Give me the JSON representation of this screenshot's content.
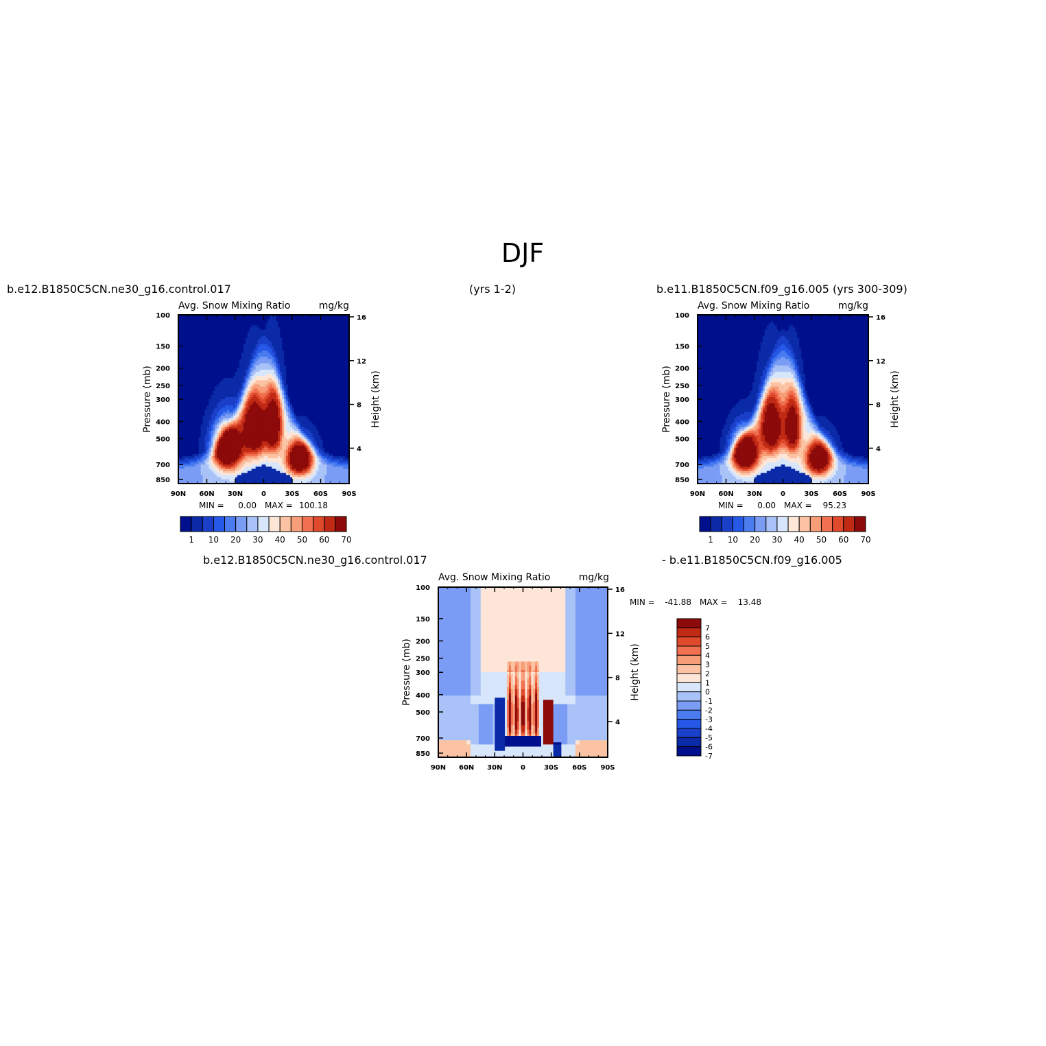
{
  "page": {
    "title": "DJF"
  },
  "panels": {
    "left": {
      "case": "b.e12.B1850C5CN.ne30_g16.control.017",
      "years": "(yrs 1-2)"
    },
    "right": {
      "case": "b.e11.B1850C5CN.f09_g16.005",
      "years": "(yrs 300-309)"
    },
    "diff": {
      "case_a": "b.e12.B1850C5CN.ne30_g16.control.017",
      "case_b": "- b.e11.B1850C5CN.f09_g16.005"
    }
  },
  "colors": {
    "blue_to_red": [
      "#00108c",
      "#0a2aa8",
      "#1a3fc8",
      "#2558e6",
      "#4a7cf0",
      "#7a9cf4",
      "#a9c2f7",
      "#d7e6fb",
      "#fde6d8",
      "#fbc3a4",
      "#f79d78",
      "#f17050",
      "#e04a2c",
      "#c02a14",
      "#8c0a0a"
    ]
  },
  "chart_data": [
    {
      "type": "heatmap",
      "id": "left",
      "title": "Avg. Snow Mixing Ratio",
      "units": "mg/kg",
      "ylabel": "Pressure (mb)",
      "y2label": "Height (km)",
      "x_ticks": [
        "90N",
        "60N",
        "30N",
        "0",
        "30S",
        "60S",
        "90S"
      ],
      "y_ticks": [
        100,
        150,
        200,
        250,
        300,
        400,
        500,
        700,
        850
      ],
      "y2_ticks": [
        4,
        8,
        12,
        16
      ],
      "min_label": "MIN =",
      "min": "0.00",
      "max_label": "MAX =",
      "max": "100.18",
      "colorbar_labels": [
        "1",
        "10",
        "20",
        "30",
        "40",
        "50",
        "60",
        "70"
      ],
      "blobs": [
        {
          "lat": -38,
          "p": 650,
          "amp": 80,
          "wlat": 9,
          "wp": 95
        },
        {
          "lat": -10,
          "p": 420,
          "amp": 70,
          "wlat": 6,
          "wp": 110
        },
        {
          "lat": 10,
          "p": 440,
          "amp": 80,
          "wlat": 8,
          "wp": 110
        },
        {
          "lat": 38,
          "p": 560,
          "amp": 95,
          "wlat": 10,
          "wp": 110
        }
      ]
    },
    {
      "type": "heatmap",
      "id": "right",
      "title": "Avg. Snow Mixing Ratio",
      "units": "mg/kg",
      "ylabel": "Pressure (mb)",
      "y2label": "Height (km)",
      "x_ticks": [
        "90N",
        "60N",
        "30N",
        "0",
        "30S",
        "60S",
        "90S"
      ],
      "y_ticks": [
        100,
        150,
        200,
        250,
        300,
        400,
        500,
        700,
        850
      ],
      "y2_ticks": [
        4,
        8,
        12,
        16
      ],
      "min_label": "MIN =",
      "min": "0.00",
      "max_label": "MAX =",
      "max": "95.23",
      "colorbar_labels": [
        "1",
        "10",
        "20",
        "30",
        "40",
        "50",
        "60",
        "70"
      ],
      "blobs": [
        {
          "lat": -38,
          "p": 650,
          "amp": 75,
          "wlat": 9,
          "wp": 95
        },
        {
          "lat": -10,
          "p": 430,
          "amp": 60,
          "wlat": 6,
          "wp": 110
        },
        {
          "lat": 12,
          "p": 430,
          "amp": 70,
          "wlat": 8,
          "wp": 110
        },
        {
          "lat": 40,
          "p": 600,
          "amp": 92,
          "wlat": 9,
          "wp": 100
        }
      ]
    },
    {
      "type": "heatmap",
      "id": "diff",
      "title": "Avg. Snow Mixing Ratio",
      "units": "mg/kg",
      "ylabel": "Pressure (mb)",
      "y2label": "Height (km)",
      "x_ticks": [
        "90N",
        "60N",
        "30N",
        "0",
        "30S",
        "60S",
        "90S"
      ],
      "y_ticks": [
        100,
        150,
        200,
        250,
        300,
        400,
        500,
        700,
        850
      ],
      "y2_ticks": [
        4,
        8,
        12,
        16
      ],
      "min_label": "MIN =",
      "min": "-41.88",
      "max_label": "MAX =",
      "max": "13.48",
      "colorbar_labels": [
        "7",
        "6",
        "5",
        "4",
        "3",
        "2",
        "1",
        "0",
        "-1",
        "-2",
        "-3",
        "-4",
        "-5",
        "-6",
        "-7"
      ]
    }
  ]
}
